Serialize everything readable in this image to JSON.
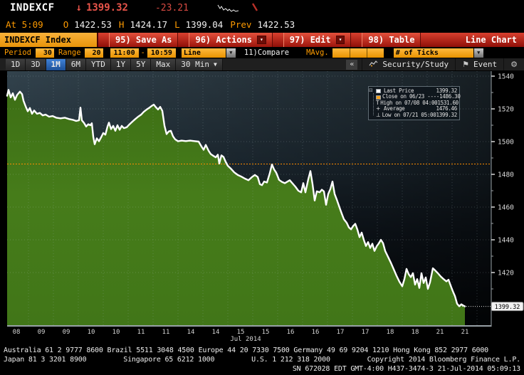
{
  "header": {
    "ticker": "INDEXCF",
    "direction_arrow": "↓",
    "last_price": "1399.32",
    "change": "-23.21",
    "at_label": "At 5:09",
    "open_label": "O",
    "open": "1422.53",
    "high_label": "H",
    "high": "1424.17",
    "low_label": "L",
    "low": "1399.04",
    "prev_label": "Prev",
    "prev": "1422.53"
  },
  "menubar": {
    "security": "INDEXCF Index",
    "buttons": [
      {
        "label": "95) Save As",
        "dropdown": false
      },
      {
        "label": "96) Actions",
        "dropdown": true
      },
      {
        "label": "97) Edit",
        "dropdown": true
      },
      {
        "label": "98) Table",
        "dropdown": false
      }
    ],
    "right_label": "Line Chart"
  },
  "fields": {
    "period_label": "Period",
    "period_value": "30",
    "range_label": "Range",
    "range_value": "20",
    "time_from": "11:00",
    "time_sep": "-",
    "time_to": "10:59",
    "chart_type": "Line",
    "compare_label": "11)Compare",
    "mavg_label": "MAvg.",
    "mavg_values": [
      "",
      "",
      ""
    ],
    "ticks_label": "# of Ticks"
  },
  "toolbar": {
    "intervals": [
      {
        "label": "1D",
        "active": false,
        "dropdown": false
      },
      {
        "label": "3D",
        "active": false,
        "dropdown": false
      },
      {
        "label": "1M",
        "active": true,
        "dropdown": false
      },
      {
        "label": "6M",
        "active": false,
        "dropdown": false
      },
      {
        "label": "YTD",
        "active": false,
        "dropdown": false
      },
      {
        "label": "1Y",
        "active": false,
        "dropdown": false
      },
      {
        "label": "5Y",
        "active": false,
        "dropdown": false
      },
      {
        "label": "Max",
        "active": false,
        "dropdown": false
      },
      {
        "label": "30 Min",
        "active": false,
        "dropdown": true
      }
    ],
    "collapse_label": "«",
    "security_study_label": "Security/Study",
    "event_label": "Event"
  },
  "legend": {
    "rows": [
      {
        "icon": "last-price-swatch",
        "label": "Last Price",
        "value": "1399.32"
      },
      {
        "icon": "close-swatch",
        "label": "Close on 06/23 ----",
        "value": "1486.30"
      },
      {
        "icon": "high-marker",
        "label": "High on 07/08 04:00",
        "value": "1531.60"
      },
      {
        "icon": "average-marker",
        "label": "Average",
        "value": "1476.46"
      },
      {
        "icon": "low-marker",
        "label": "Low on 07/21 05:00",
        "value": "1399.32"
      }
    ]
  },
  "chart_data": {
    "type": "area",
    "title": "INDEXCF Index intraday line chart",
    "x_axis": {
      "labels": [
        "08",
        "09",
        "09",
        "10",
        "10",
        "11",
        "11",
        "14",
        "14",
        "15",
        "15",
        "16",
        "16",
        "17",
        "17",
        "18",
        "18",
        "21",
        "21"
      ],
      "month_label": "Jul 2014"
    },
    "y_axis": {
      "ticks": [
        1540,
        1520,
        1500,
        1480,
        1460,
        1440,
        1420
      ],
      "range": [
        1396,
        1543
      ]
    },
    "last_price_badge": "1399.32",
    "reference": {
      "close_value": 1486.3
    },
    "stats": {
      "last_price": 1399.32,
      "close_06_23": 1486.3,
      "high_07_08_0400": 1531.6,
      "average": 1476.46,
      "low_07_21_0500": 1399.32
    },
    "legend_position": "top-right",
    "grid": true,
    "series": [
      {
        "name": "INDEXCF Index",
        "color": "#ffffff",
        "fill": "#447a1b",
        "points": [
          [
            10,
            1528
          ],
          [
            12,
            1531.6
          ],
          [
            15,
            1527
          ],
          [
            18,
            1529.5
          ],
          [
            21,
            1525.5
          ],
          [
            24,
            1528.5
          ],
          [
            28,
            1530.5
          ],
          [
            31,
            1529
          ],
          [
            33,
            1525
          ],
          [
            36,
            1521.5
          ],
          [
            39,
            1518.5
          ],
          [
            42,
            1520.5
          ],
          [
            45,
            1517
          ],
          [
            48,
            1519
          ],
          [
            52,
            1517
          ],
          [
            56,
            1517.5
          ],
          [
            60,
            1516
          ],
          [
            64,
            1516.5
          ],
          [
            69,
            1515.2
          ],
          [
            74,
            1515.6
          ],
          [
            79,
            1514.6
          ],
          [
            85,
            1514.2
          ],
          [
            91,
            1514.6
          ],
          [
            97,
            1513.8
          ],
          [
            103,
            1513.2
          ],
          [
            107,
            1512.6
          ],
          [
            111,
            1513
          ],
          [
            113,
            1520.8
          ],
          [
            115,
            1513
          ],
          [
            118,
            1511.4
          ],
          [
            121,
            1509.2
          ],
          [
            124,
            1510.6
          ],
          [
            127,
            1510
          ],
          [
            129,
            1511.2
          ],
          [
            131,
            1503
          ],
          [
            133,
            1498.4
          ],
          [
            136,
            1502
          ],
          [
            139,
            1500.2
          ],
          [
            142,
            1502.6
          ],
          [
            145,
            1505.2
          ],
          [
            148,
            1504.2
          ],
          [
            151,
            1509.2
          ],
          [
            153,
            1511.6
          ],
          [
            156,
            1507.6
          ],
          [
            159,
            1509.6
          ],
          [
            162,
            1506.6
          ],
          [
            165,
            1510
          ],
          [
            168,
            1507.2
          ],
          [
            171,
            1509.6
          ],
          [
            174,
            1508.2
          ],
          [
            178,
            1508.8
          ],
          [
            182,
            1510.6
          ],
          [
            186,
            1512.2
          ],
          [
            190,
            1513.8
          ],
          [
            194,
            1515.2
          ],
          [
            198,
            1516.4
          ],
          [
            202,
            1518.2
          ],
          [
            206,
            1519.6
          ],
          [
            210,
            1520.8
          ],
          [
            213,
            1521.8
          ],
          [
            216,
            1522.6
          ],
          [
            219,
            1521
          ],
          [
            222,
            1519.6
          ],
          [
            225,
            1521.2
          ],
          [
            228,
            1518.8
          ],
          [
            231,
            1509.8
          ],
          [
            234,
            1504.6
          ],
          [
            237,
            1506.2
          ],
          [
            240,
            1506.6
          ],
          [
            243,
            1503.2
          ],
          [
            246,
            1501.4
          ],
          [
            250,
            1500.2
          ],
          [
            255,
            1500.6
          ],
          [
            261,
            1500.3
          ],
          [
            267,
            1500.6
          ],
          [
            273,
            1500.3
          ],
          [
            279,
            1500
          ],
          [
            283,
            1497
          ],
          [
            286,
            1495
          ],
          [
            289,
            1498
          ],
          [
            293,
            1494.4
          ],
          [
            296,
            1492.4
          ],
          [
            300,
            1491.2
          ],
          [
            303,
            1490.4
          ],
          [
            306,
            1492
          ],
          [
            308,
            1486.6
          ],
          [
            311,
            1491.6
          ],
          [
            314,
            1490.6
          ],
          [
            317,
            1487.6
          ],
          [
            320,
            1485.2
          ],
          [
            324,
            1483.6
          ],
          [
            329,
            1481.2
          ],
          [
            334,
            1479.6
          ],
          [
            339,
            1478.6
          ],
          [
            344,
            1477.4
          ],
          [
            349,
            1476.4
          ],
          [
            354,
            1478.4
          ],
          [
            358,
            1479.6
          ],
          [
            362,
            1478.4
          ],
          [
            365,
            1474
          ],
          [
            368,
            1473.4
          ],
          [
            371,
            1475.6
          ],
          [
            375,
            1475
          ],
          [
            379,
            1480.8
          ],
          [
            382,
            1486
          ],
          [
            385,
            1483
          ],
          [
            388,
            1481
          ],
          [
            392,
            1476.6
          ],
          [
            396,
            1475.4
          ],
          [
            400,
            1474.6
          ],
          [
            404,
            1475.6
          ],
          [
            407,
            1476.4
          ],
          [
            411,
            1474.4
          ],
          [
            415,
            1472.4
          ],
          [
            419,
            1470
          ],
          [
            423,
            1469
          ],
          [
            426,
            1474.6
          ],
          [
            429,
            1469
          ],
          [
            433,
            1477
          ],
          [
            436,
            1482
          ],
          [
            439,
            1474
          ],
          [
            442,
            1464
          ],
          [
            445,
            1469.6
          ],
          [
            449,
            1469
          ],
          [
            452,
            1470.6
          ],
          [
            455,
            1469.6
          ],
          [
            458,
            1461.4
          ],
          [
            461,
            1468
          ],
          [
            464,
            1471
          ],
          [
            467,
            1475.6
          ],
          [
            470,
            1468
          ],
          [
            473,
            1464.6
          ],
          [
            477,
            1459.6
          ],
          [
            480,
            1456
          ],
          [
            483,
            1452.6
          ],
          [
            487,
            1450.4
          ],
          [
            490,
            1447.6
          ],
          [
            493,
            1446.4
          ],
          [
            496,
            1448.4
          ],
          [
            499,
            1449.8
          ],
          [
            502,
            1446.2
          ],
          [
            505,
            1441.6
          ],
          [
            508,
            1444.4
          ],
          [
            511,
            1440
          ],
          [
            514,
            1436.2
          ],
          [
            517,
            1438.6
          ],
          [
            520,
            1435
          ],
          [
            523,
            1437.6
          ],
          [
            526,
            1433.2
          ],
          [
            529,
            1436
          ],
          [
            532,
            1437.8
          ],
          [
            535,
            1440
          ],
          [
            538,
            1438
          ],
          [
            541,
            1433.2
          ],
          [
            545,
            1429.6
          ],
          [
            549,
            1426
          ],
          [
            553,
            1422
          ],
          [
            557,
            1418
          ],
          [
            561,
            1414.4
          ],
          [
            565,
            1411.6
          ],
          [
            568,
            1416
          ],
          [
            571,
            1422.2
          ],
          [
            574,
            1419
          ],
          [
            577,
            1417.2
          ],
          [
            580,
            1419.6
          ],
          [
            583,
            1412.6
          ],
          [
            586,
            1416
          ],
          [
            589,
            1410.6
          ],
          [
            592,
            1419.6
          ],
          [
            595,
            1413.6
          ],
          [
            598,
            1417
          ],
          [
            601,
            1410
          ],
          [
            604,
            1414
          ],
          [
            608,
            1422.6
          ],
          [
            611,
            1421.4
          ],
          [
            615,
            1419.6
          ],
          [
            619,
            1417.6
          ],
          [
            623,
            1416
          ],
          [
            627,
            1414.6
          ],
          [
            630,
            1415.6
          ],
          [
            633,
            1412
          ],
          [
            636,
            1408.6
          ],
          [
            639,
            1405.6
          ],
          [
            642,
            1401
          ],
          [
            645,
            1399.4
          ],
          [
            648,
            1400.6
          ],
          [
            651,
            1399.8
          ],
          [
            653,
            1399.32
          ]
        ]
      }
    ]
  },
  "footer": {
    "line1": "Australia 61 2 9777 8600 Brazil 5511 3048 4500 Europe 44 20 7330 7500 Germany 49 69 9204 1210 Hong Kong 852 2977 6000",
    "line2_segments": [
      "Japan 81 3 3201 8900",
      "Singapore 65 6212 1000",
      "U.S. 1 212 318 2000",
      "Copyright 2014 Bloomberg Finance L.P."
    ],
    "line3": "SN 672028 EDT  GMT-4:00 H437-3474-3 21-Jul-2014 05:09:13"
  },
  "colors": {
    "amber": "#f5a40a",
    "down_red": "#e8544a",
    "menubar_red": "#c1281a",
    "selected_blue": "#2f6fbe",
    "green_fill": "#447a1b",
    "close_line": "#ff8c00",
    "chart_bg_top": "#2e3c46",
    "line": "#ffffff"
  }
}
